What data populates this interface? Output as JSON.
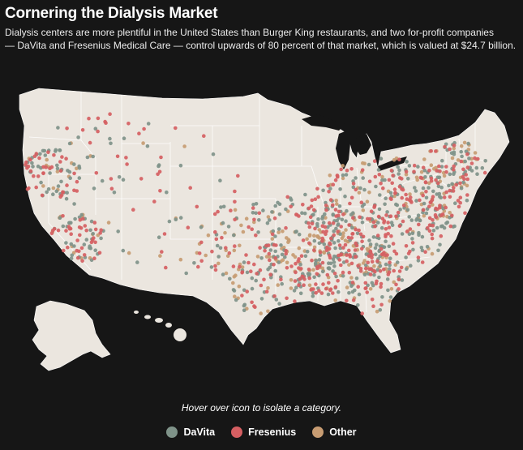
{
  "title": "Cornering the Dialysis Market",
  "subtitle_lines": [
    "Dialysis centers are more plentiful in the United States than Burger King restaurants, and two for-profit companies",
    "— DaVita and  Fresenius Medical Care — control upwards of 80 percent of that market, which is valued at $24.7 billion."
  ],
  "hint": "Hover over icon to isolate a category.",
  "legend": [
    {
      "id": "davita",
      "label": "DaVita",
      "color": "#7f9389"
    },
    {
      "id": "fresenius",
      "label": "Fresenius",
      "color": "#d55f62"
    },
    {
      "id": "other",
      "label": "Other",
      "color": "#c79c72"
    }
  ],
  "colors": {
    "background": "#161616",
    "land": "#ebe6df",
    "border": "#ffffff"
  }
}
